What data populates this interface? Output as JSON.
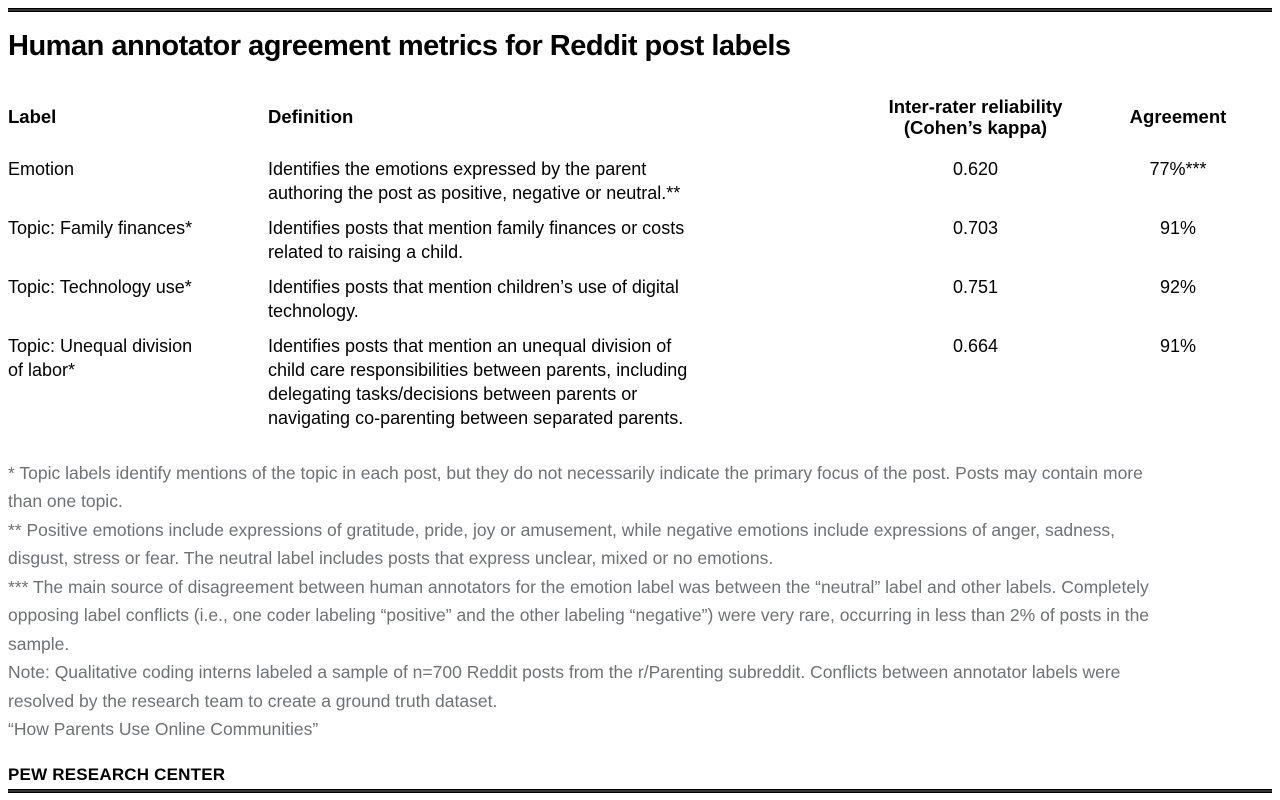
{
  "chart_data": {
    "type": "table",
    "title": "Human annotator agreement metrics for Reddit post labels",
    "columns": {
      "label": "Label",
      "definition": "Definition",
      "kappa": "Inter-rater reliability\n(Cohen’s kappa)",
      "agreement": "Agreement"
    },
    "rows": [
      {
        "label": "Emotion",
        "definition": "Identifies the emotions expressed by the parent\nauthoring the post as positive, negative or neutral.**",
        "kappa": "0.620",
        "agreement": "77%***"
      },
      {
        "label": "Topic: Family finances*",
        "definition": "Identifies posts that mention family finances or costs\nrelated to raising a child.",
        "kappa": "0.703",
        "agreement": "91%"
      },
      {
        "label": "Topic: Technology use*",
        "definition": "Identifies posts that mention children’s use of digital\ntechnology.",
        "kappa": "0.751",
        "agreement": "92%"
      },
      {
        "label": "Topic: Unequal division\nof labor*",
        "definition": "Identifies posts that mention an unequal division of\nchild care responsibilities between parents, including\ndelegating tasks/decisions between parents or\nnavigating co-parenting between separated parents.",
        "kappa": "0.664",
        "agreement": "91%"
      }
    ],
    "footnotes": [
      "* Topic labels identify mentions of the topic in each post, but they do not necessarily indicate the primary focus of the post. Posts may contain more than one topic.",
      "** Positive emotions include expressions of gratitude, pride, joy or amusement, while negative emotions include expressions of anger, sadness, disgust, stress or fear. The neutral label includes posts that express unclear, mixed or no emotions.",
      "*** The main source of disagreement between human annotators for the emotion label was between the “neutral” label and other labels. Completely opposing label conflicts (i.e., one coder labeling “positive” and the other labeling “negative”) were very rare, occurring in less than 2% of posts in the sample.",
      "Note: Qualitative coding interns labeled a sample of n=700 Reddit posts from the r/Parenting subreddit. Conflicts between annotator labels were resolved by the research team to create a ground truth dataset.",
      "“How Parents Use Online Communities”"
    ],
    "branding": "PEW RESEARCH CENTER",
    "layout": "static report table, no gridlines, top and bottom horizontal rules"
  },
  "colors": {
    "text": "#000000",
    "note_gray": "#6f7173",
    "rule": "#1a1a1a",
    "background": "#ffffff"
  }
}
